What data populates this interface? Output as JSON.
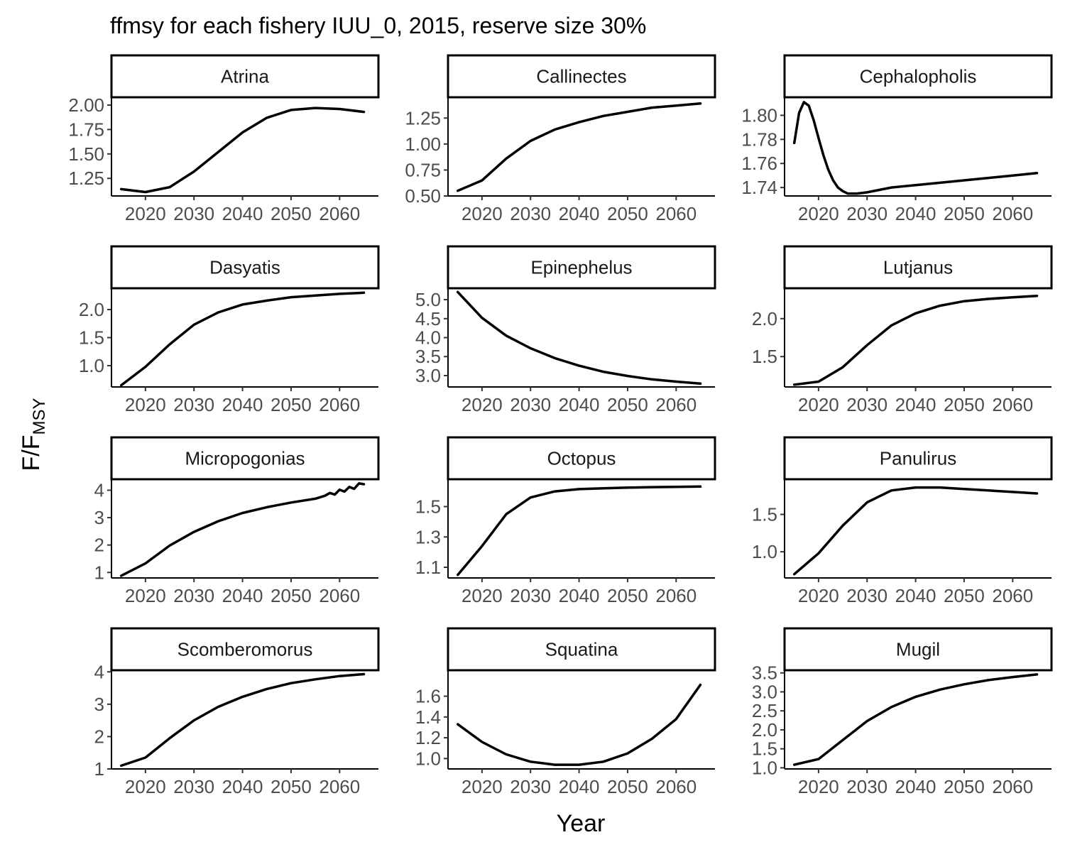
{
  "chart_data": {
    "type": "line",
    "title": "ffmsy for each fishery IUU_0, 2015, reserve size 30%",
    "xlabel": "Year",
    "ylabel": "F/F",
    "ylabel_subscript": "MSY",
    "xlim": [
      2013,
      2068
    ],
    "x_ticks": [
      "2020",
      "2030",
      "2040",
      "2050",
      "2060"
    ],
    "grid": false,
    "line_color": "#000000",
    "panels": [
      {
        "name": "Atrina",
        "ylim": [
          1.07,
          2.08
        ],
        "y_ticks": [
          "1.25",
          "1.50",
          "1.75",
          "2.00"
        ],
        "x": [
          2015,
          2020,
          2025,
          2030,
          2035,
          2040,
          2045,
          2050,
          2055,
          2060,
          2065
        ],
        "y": [
          1.14,
          1.11,
          1.16,
          1.32,
          1.52,
          1.72,
          1.87,
          1.95,
          1.97,
          1.96,
          1.93
        ]
      },
      {
        "name": "Callinectes",
        "ylim": [
          0.5,
          1.45
        ],
        "y_ticks": [
          "0.50",
          "0.75",
          "1.00",
          "1.25"
        ],
        "x": [
          2015,
          2020,
          2025,
          2030,
          2035,
          2040,
          2045,
          2050,
          2055,
          2060,
          2065
        ],
        "y": [
          0.55,
          0.65,
          0.86,
          1.03,
          1.14,
          1.21,
          1.27,
          1.31,
          1.35,
          1.37,
          1.39
        ]
      },
      {
        "name": "Cephalopholis",
        "ylim": [
          1.733,
          1.815
        ],
        "y_ticks": [
          "1.74",
          "1.76",
          "1.78",
          "1.80"
        ],
        "x": [
          2015,
          2016,
          2017,
          2018,
          2019,
          2020,
          2021,
          2022,
          2023,
          2024,
          2025,
          2026,
          2027,
          2028,
          2030,
          2035,
          2040,
          2045,
          2050,
          2055,
          2060,
          2065
        ],
        "y": [
          1.777,
          1.802,
          1.811,
          1.808,
          1.796,
          1.781,
          1.767,
          1.755,
          1.746,
          1.74,
          1.737,
          1.735,
          1.735,
          1.735,
          1.736,
          1.74,
          1.742,
          1.744,
          1.746,
          1.748,
          1.75,
          1.752
        ]
      },
      {
        "name": "Dasyatis",
        "ylim": [
          0.62,
          2.38
        ],
        "y_ticks": [
          "1.0",
          "1.5",
          "2.0"
        ],
        "x": [
          2015,
          2020,
          2025,
          2030,
          2035,
          2040,
          2045,
          2050,
          2055,
          2060,
          2065
        ],
        "y": [
          0.65,
          0.98,
          1.38,
          1.73,
          1.95,
          2.09,
          2.16,
          2.22,
          2.25,
          2.28,
          2.3
        ]
      },
      {
        "name": "Epinephelus",
        "ylim": [
          2.7,
          5.3
        ],
        "y_ticks": [
          "3.0",
          "3.5",
          "4.0",
          "4.5",
          "5.0"
        ],
        "x": [
          2015,
          2020,
          2025,
          2030,
          2035,
          2040,
          2045,
          2050,
          2055,
          2060,
          2065
        ],
        "y": [
          5.2,
          4.52,
          4.05,
          3.72,
          3.46,
          3.26,
          3.1,
          2.99,
          2.9,
          2.84,
          2.79
        ]
      },
      {
        "name": "Lutjanus",
        "ylim": [
          1.1,
          2.4
        ],
        "y_ticks": [
          "1.5",
          "2.0"
        ],
        "x": [
          2015,
          2020,
          2025,
          2030,
          2035,
          2040,
          2045,
          2050,
          2055,
          2060,
          2065
        ],
        "y": [
          1.13,
          1.17,
          1.36,
          1.65,
          1.91,
          2.07,
          2.17,
          2.23,
          2.26,
          2.28,
          2.3
        ]
      },
      {
        "name": "Micropogonias",
        "ylim": [
          0.8,
          4.4
        ],
        "y_ticks": [
          "1",
          "2",
          "3",
          "4"
        ],
        "x": [
          2015,
          2020,
          2025,
          2030,
          2035,
          2040,
          2045,
          2050,
          2055,
          2057,
          2058,
          2059,
          2060,
          2061,
          2062,
          2063,
          2064,
          2065
        ],
        "y": [
          0.88,
          1.33,
          1.98,
          2.48,
          2.87,
          3.17,
          3.38,
          3.55,
          3.69,
          3.8,
          3.9,
          3.84,
          4.02,
          3.95,
          4.12,
          4.05,
          4.25,
          4.22
        ]
      },
      {
        "name": "Octopus",
        "ylim": [
          1.03,
          1.68
        ],
        "y_ticks": [
          "1.1",
          "1.3",
          "1.5"
        ],
        "x": [
          2015,
          2020,
          2025,
          2030,
          2035,
          2040,
          2045,
          2050,
          2055,
          2060,
          2065
        ],
        "y": [
          1.05,
          1.24,
          1.45,
          1.56,
          1.6,
          1.615,
          1.62,
          1.625,
          1.628,
          1.63,
          1.632
        ]
      },
      {
        "name": "Panulirus",
        "ylim": [
          0.65,
          1.97
        ],
        "y_ticks": [
          "1.0",
          "1.5"
        ],
        "x": [
          2015,
          2020,
          2025,
          2030,
          2035,
          2040,
          2045,
          2050,
          2055,
          2060,
          2065
        ],
        "y": [
          0.7,
          0.98,
          1.35,
          1.66,
          1.82,
          1.86,
          1.86,
          1.84,
          1.82,
          1.8,
          1.78
        ]
      },
      {
        "name": "Scomberomorus",
        "ylim": [
          1.0,
          4.05
        ],
        "y_ticks": [
          "1",
          "2",
          "3",
          "4"
        ],
        "x": [
          2015,
          2020,
          2025,
          2030,
          2035,
          2040,
          2045,
          2050,
          2055,
          2060,
          2065
        ],
        "y": [
          1.1,
          1.35,
          1.95,
          2.5,
          2.92,
          3.23,
          3.47,
          3.65,
          3.77,
          3.87,
          3.93
        ]
      },
      {
        "name": "Squatina",
        "ylim": [
          0.9,
          1.85
        ],
        "y_ticks": [
          "1.0",
          "1.2",
          "1.4",
          "1.6"
        ],
        "x": [
          2015,
          2020,
          2025,
          2030,
          2035,
          2040,
          2045,
          2050,
          2055,
          2060,
          2065
        ],
        "y": [
          1.33,
          1.16,
          1.04,
          0.97,
          0.94,
          0.94,
          0.97,
          1.05,
          1.19,
          1.38,
          1.71
        ]
      },
      {
        "name": "Mugil",
        "ylim": [
          0.97,
          3.57
        ],
        "y_ticks": [
          "1.0",
          "1.5",
          "2.0",
          "2.5",
          "3.0",
          "3.5"
        ],
        "x": [
          2015,
          2020,
          2025,
          2030,
          2035,
          2040,
          2045,
          2050,
          2055,
          2060,
          2065
        ],
        "y": [
          1.08,
          1.23,
          1.73,
          2.23,
          2.6,
          2.87,
          3.06,
          3.2,
          3.31,
          3.39,
          3.46
        ]
      }
    ]
  }
}
